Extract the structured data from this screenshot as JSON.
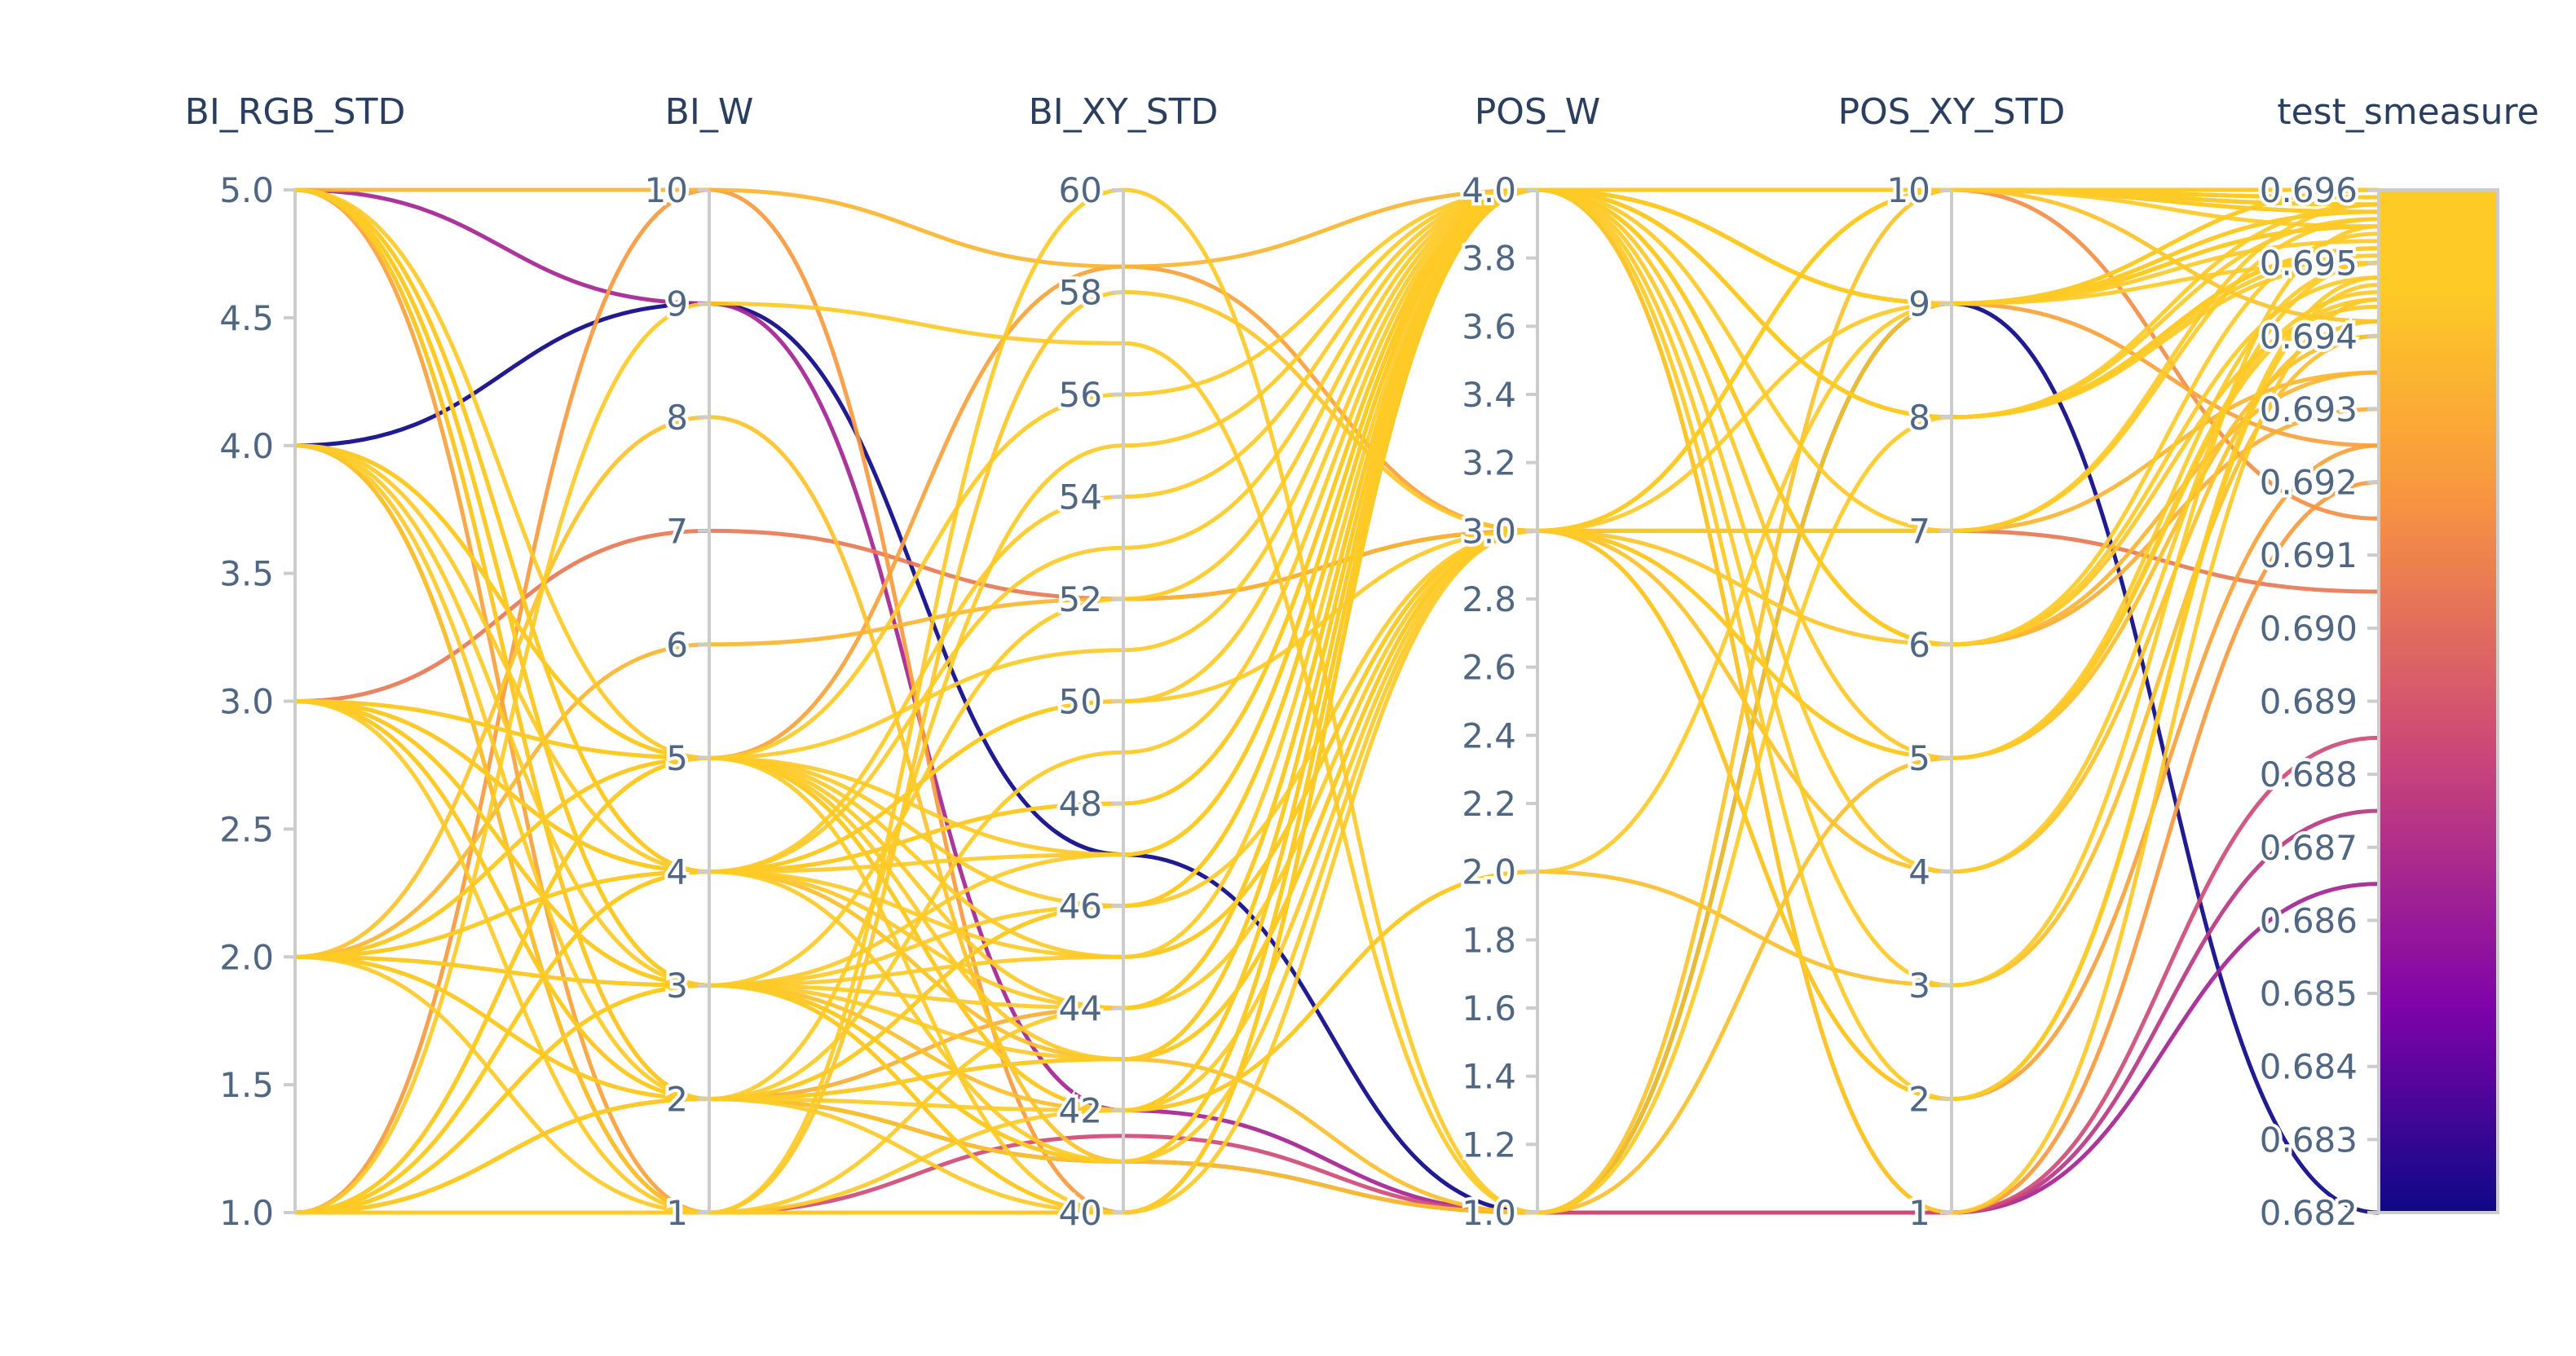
{
  "chart_data": {
    "type": "parallel-coordinates",
    "colorscale": "plasma",
    "colors": [
      "#0d0887",
      "#7e03a8",
      "#cc4778",
      "#f89540",
      "#fdca26",
      "#f0f921"
    ],
    "axes": [
      {
        "label": "BI_RGB_STD",
        "range": [
          1.0,
          5.0
        ],
        "ticks": [
          "1.0",
          "1.5",
          "2.0",
          "2.5",
          "3.0",
          "3.5",
          "4.0",
          "4.5",
          "5.0"
        ]
      },
      {
        "label": "BI_W",
        "range": [
          1,
          10
        ],
        "ticks": [
          "1",
          "2",
          "3",
          "4",
          "5",
          "6",
          "7",
          "8",
          "9",
          "10"
        ]
      },
      {
        "label": "BI_XY_STD",
        "range": [
          40,
          60
        ],
        "ticks": [
          "40",
          "42",
          "44",
          "46",
          "48",
          "50",
          "52",
          "54",
          "56",
          "58",
          "60"
        ]
      },
      {
        "label": "POS_W",
        "range": [
          1.0,
          4.0
        ],
        "ticks": [
          "1.0",
          "1.2",
          "1.4",
          "1.6",
          "1.8",
          "2.0",
          "2.2",
          "2.4",
          "2.6",
          "2.8",
          "3.0",
          "3.2",
          "3.4",
          "3.6",
          "3.8",
          "4.0"
        ]
      },
      {
        "label": "POS_XY_STD",
        "range": [
          1,
          10
        ],
        "ticks": [
          "1",
          "2",
          "3",
          "4",
          "5",
          "6",
          "7",
          "8",
          "9",
          "10"
        ]
      },
      {
        "label": "test_smeasure",
        "range": [
          0.682,
          0.696
        ],
        "ticks": [
          "0.682",
          "0.683",
          "0.684",
          "0.685",
          "0.686",
          "0.687",
          "0.688",
          "0.689",
          "0.690",
          "0.691",
          "0.692",
          "0.693",
          "0.694",
          "0.695",
          "0.696"
        ]
      }
    ],
    "rows": [
      [
        4,
        9,
        47,
        1,
        9,
        0.682
      ],
      [
        5,
        9,
        42,
        1,
        1,
        0.6865
      ],
      [
        1,
        2,
        41,
        1,
        1,
        0.6875
      ],
      [
        4,
        1,
        41.5,
        1,
        1,
        0.6885
      ],
      [
        3,
        7,
        52,
        3,
        7,
        0.6905
      ],
      [
        1,
        1,
        40,
        4,
        10,
        0.6915
      ],
      [
        5,
        1,
        40,
        4,
        9,
        0.6925
      ],
      [
        2,
        6,
        52,
        3,
        7,
        0.6935
      ],
      [
        1,
        10,
        40,
        4,
        1,
        0.692
      ],
      [
        5,
        10,
        58.5,
        4,
        6,
        0.6935
      ],
      [
        2,
        8,
        41,
        1,
        10,
        0.6942
      ],
      [
        1,
        5,
        58.5,
        3,
        2,
        0.6925
      ],
      [
        3,
        4,
        43,
        1,
        5,
        0.694
      ],
      [
        2,
        3,
        41,
        4,
        5,
        0.6945
      ],
      [
        1,
        9,
        57,
        1,
        9,
        0.695
      ],
      [
        5,
        2,
        44,
        4,
        6,
        0.693
      ],
      [
        2,
        5,
        46,
        3,
        2,
        0.6948
      ],
      [
        1,
        3,
        52,
        4,
        8,
        0.6952
      ],
      [
        4,
        1,
        40,
        4,
        9,
        0.6955
      ],
      [
        3,
        5,
        42,
        2,
        9,
        0.696
      ],
      [
        1,
        2,
        43,
        4,
        10,
        0.6958
      ],
      [
        4,
        5,
        45,
        3,
        5,
        0.695
      ],
      [
        5,
        3,
        41,
        4,
        3,
        0.6955
      ],
      [
        3,
        4,
        44,
        4,
        1,
        0.6945
      ],
      [
        2,
        2,
        46,
        4,
        10,
        0.696
      ],
      [
        1,
        4,
        48,
        4,
        8,
        0.6952
      ],
      [
        5,
        4,
        50,
        3,
        10,
        0.6957
      ],
      [
        3,
        3,
        40,
        4,
        4,
        0.695
      ],
      [
        1,
        5,
        42,
        3,
        9,
        0.6955
      ],
      [
        2,
        1,
        60,
        1,
        8,
        0.6958
      ],
      [
        4,
        3,
        47,
        4,
        6,
        0.6948
      ],
      [
        5,
        4,
        45,
        4,
        9,
        0.696
      ],
      [
        1,
        3,
        43,
        3,
        10,
        0.6955
      ],
      [
        3,
        2,
        55,
        4,
        8,
        0.695
      ],
      [
        2,
        4,
        41,
        4,
        7,
        0.6958
      ],
      [
        1,
        2,
        49,
        4,
        10,
        0.6957
      ],
      [
        4,
        5,
        44,
        3,
        10,
        0.696
      ],
      [
        5,
        3,
        46,
        4,
        9,
        0.6953
      ],
      [
        3,
        1,
        42,
        4,
        2,
        0.6947
      ],
      [
        1,
        4,
        54,
        4,
        10,
        0.6959
      ],
      [
        2,
        3,
        40,
        3,
        7,
        0.6956
      ],
      [
        1,
        5,
        47,
        4,
        8,
        0.6951
      ],
      [
        5,
        2,
        42,
        4,
        10,
        0.696
      ],
      [
        3,
        4,
        48,
        4,
        9,
        0.6957
      ],
      [
        1,
        3,
        45,
        3,
        5,
        0.6946
      ],
      [
        4,
        2,
        40,
        4,
        10,
        0.6958
      ],
      [
        2,
        5,
        56,
        4,
        6,
        0.6954
      ],
      [
        1,
        1,
        44,
        4,
        8,
        0.6952
      ],
      [
        3,
        3,
        41,
        3,
        10,
        0.696
      ],
      [
        5,
        5,
        43,
        4,
        9,
        0.6955
      ],
      [
        1,
        2,
        46,
        4,
        10,
        0.6959
      ],
      [
        2,
        4,
        50,
        4,
        8,
        0.6956
      ],
      [
        1,
        3,
        42,
        2,
        3,
        0.694
      ],
      [
        4,
        4,
        53,
        4,
        10,
        0.6958
      ],
      [
        3,
        5,
        40,
        4,
        9,
        0.6957
      ],
      [
        1,
        1,
        58,
        3,
        6,
        0.6944
      ],
      [
        5,
        3,
        44,
        4,
        10,
        0.696
      ],
      [
        2,
        2,
        41,
        4,
        9,
        0.6955
      ],
      [
        1,
        4,
        47,
        4,
        10,
        0.6958
      ],
      [
        3,
        2,
        43,
        3,
        4,
        0.6942
      ],
      [
        4,
        5,
        51,
        4,
        10,
        0.6959
      ]
    ]
  }
}
